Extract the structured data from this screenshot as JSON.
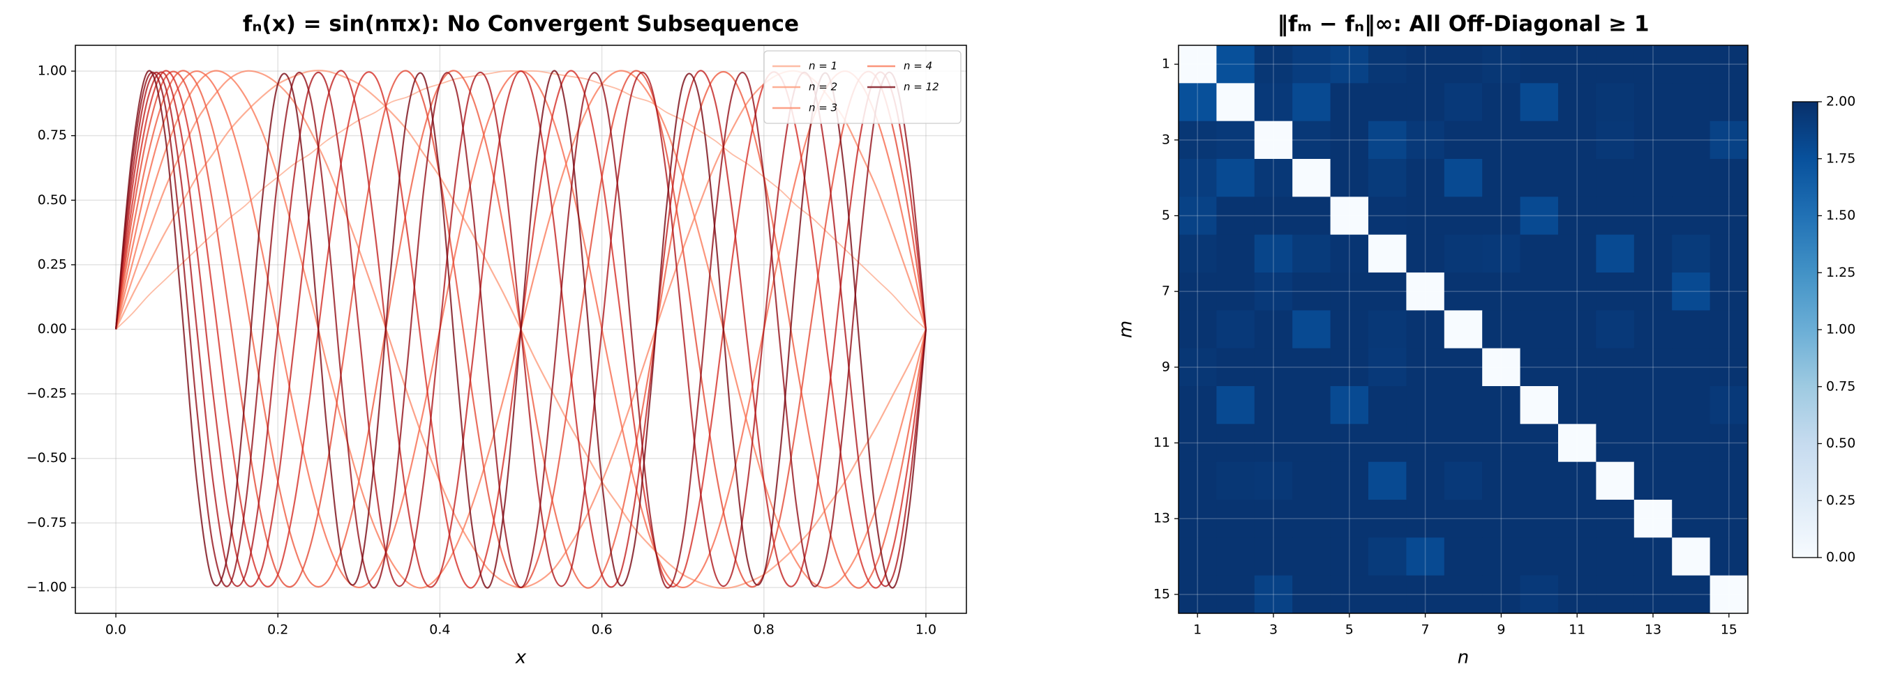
{
  "chart_data": [
    {
      "type": "line",
      "title": "fₙ(x) = sin(nπx): No Convergent Subsequence",
      "xlabel": "x",
      "xlim": [
        -0.05,
        1.05
      ],
      "ylim": [
        -1.1,
        1.1
      ],
      "xticks": [
        {
          "value": 0,
          "label": "0.0"
        },
        {
          "value": 0.2,
          "label": "0.2"
        },
        {
          "value": 0.4,
          "label": "0.4"
        },
        {
          "value": 0.6,
          "label": "0.6"
        },
        {
          "value": 0.8,
          "label": "0.8"
        },
        {
          "value": 1,
          "label": "1.0"
        }
      ],
      "yticks": [
        {
          "value": -1,
          "label": "−1.00"
        },
        {
          "value": -0.75,
          "label": "−0.75"
        },
        {
          "value": -0.5,
          "label": "−0.50"
        },
        {
          "value": -0.25,
          "label": "−0.25"
        },
        {
          "value": 0,
          "label": "0.00"
        },
        {
          "value": 0.25,
          "label": "0.25"
        },
        {
          "value": 0.5,
          "label": "0.50"
        },
        {
          "value": 0.75,
          "label": "0.75"
        },
        {
          "value": 1,
          "label": "1.00"
        }
      ],
      "grid": true,
      "legend": "upper right",
      "x": [
        0,
        0.02,
        0.04,
        0.06,
        0.08,
        0.1,
        0.12,
        0.14,
        0.16,
        0.18,
        0.2,
        0.22,
        0.24,
        0.26,
        0.28,
        0.3,
        0.32,
        0.34,
        0.36,
        0.38,
        0.4,
        0.42,
        0.44,
        0.46,
        0.48,
        0.5,
        0.52,
        0.54,
        0.56,
        0.58,
        0.6,
        0.62,
        0.64,
        0.66,
        0.68,
        0.7,
        0.72,
        0.74,
        0.76,
        0.78,
        0.8,
        0.82,
        0.84,
        0.86,
        0.88,
        0.9,
        0.92,
        0.94,
        0.96,
        0.98,
        1
      ],
      "series": [
        {
          "name": "n = 1",
          "color": "#fcab8f",
          "values": [
            0,
            0.06,
            0.13,
            0.19,
            0.25,
            0.31,
            0.37,
            0.43,
            0.48,
            0.54,
            0.59,
            0.64,
            0.68,
            0.73,
            0.77,
            0.81,
            0.84,
            0.88,
            0.9,
            0.93,
            0.95,
            0.97,
            0.98,
            0.99,
            1,
            1,
            1,
            0.99,
            0.98,
            0.97,
            0.95,
            0.93,
            0.9,
            0.88,
            0.84,
            0.81,
            0.77,
            0.73,
            0.68,
            0.64,
            0.59,
            0.54,
            0.48,
            0.43,
            0.37,
            0.31,
            0.25,
            0.19,
            0.13,
            0.06,
            0
          ]
        },
        {
          "name": "n = 2",
          "color": "#fc9b7c",
          "values": [
            0,
            0.13,
            0.25,
            0.37,
            0.48,
            0.59,
            0.68,
            0.77,
            0.84,
            0.9,
            0.95,
            0.98,
            1,
            1,
            0.98,
            0.95,
            0.9,
            0.84,
            0.77,
            0.68,
            0.59,
            0.48,
            0.37,
            0.25,
            0.13,
            0,
            -0.13,
            -0.25,
            -0.37,
            -0.48,
            -0.59,
            -0.68,
            -0.77,
            -0.84,
            -0.9,
            -0.95,
            -0.98,
            -1,
            -1,
            -0.98,
            -0.95,
            -0.9,
            -0.84,
            -0.77,
            -0.68,
            -0.59,
            -0.48,
            -0.37,
            -0.25,
            -0.13,
            0
          ]
        },
        {
          "name": "n = 3",
          "color": "#fb8a6a",
          "values": [
            0,
            0.19,
            0.37,
            0.54,
            0.68,
            0.81,
            0.9,
            0.97,
            1,
            0.99,
            0.95,
            0.88,
            0.77,
            0.64,
            0.48,
            0.31,
            0.13,
            -0.06,
            -0.25,
            -0.43,
            -0.59,
            -0.73,
            -0.84,
            -0.93,
            -0.98,
            -1,
            -0.98,
            -0.93,
            -0.84,
            -0.73,
            -0.59,
            -0.43,
            -0.25,
            -0.06,
            0.13,
            0.31,
            0.48,
            0.64,
            0.77,
            0.88,
            0.95,
            0.99,
            1,
            0.97,
            0.9,
            0.81,
            0.68,
            0.54,
            0.37,
            0.19,
            0
          ]
        },
        {
          "name": "n = 4",
          "color": "#fa7a5a",
          "values": [
            0,
            0.25,
            0.48,
            0.68,
            0.84,
            0.95,
            1,
            0.98,
            0.9,
            0.77,
            0.59,
            0.37,
            0.13,
            -0.13,
            -0.37,
            -0.59,
            -0.77,
            -0.9,
            -0.98,
            -1,
            -0.95,
            -0.84,
            -0.68,
            -0.48,
            -0.25,
            0,
            0.25,
            0.48,
            0.68,
            0.84,
            0.95,
            1,
            0.98,
            0.9,
            0.77,
            0.59,
            0.37,
            0.13,
            -0.13,
            -0.37,
            -0.59,
            -0.77,
            -0.9,
            -0.98,
            -1,
            -0.95,
            -0.84,
            -0.68,
            -0.48,
            -0.25,
            0
          ]
        },
        {
          "color": "#f6694c",
          "values": [
            0,
            0.31,
            0.59,
            0.81,
            0.95,
            1,
            0.95,
            0.81,
            0.59,
            0.31,
            0,
            -0.31,
            -0.59,
            -0.81,
            -0.95,
            -1,
            -0.95,
            -0.81,
            -0.59,
            -0.31,
            0,
            0.31,
            0.59,
            0.81,
            0.95,
            1,
            0.95,
            0.81,
            0.59,
            0.31,
            0,
            -0.31,
            -0.59,
            -0.81,
            -0.95,
            -1,
            -0.95,
            -0.81,
            -0.59,
            -0.31,
            0,
            0.31,
            0.59,
            0.81,
            0.95,
            1,
            0.95,
            0.81,
            0.59,
            0.31,
            0
          ]
        },
        {
          "color": "#ef5b40",
          "values": [
            0,
            0.37,
            0.68,
            0.9,
            1,
            0.95,
            0.77,
            0.48,
            0.13,
            -0.25,
            -0.59,
            -0.84,
            -0.98,
            -0.98,
            -0.84,
            -0.59,
            -0.25,
            0.13,
            0.48,
            0.77,
            0.95,
            1,
            0.9,
            0.68,
            0.37,
            0,
            -0.37,
            -0.68,
            -0.9,
            -1,
            -0.95,
            -0.77,
            -0.48,
            -0.13,
            0.25,
            0.59,
            0.84,
            0.98,
            0.98,
            0.84,
            0.59,
            0.25,
            -0.13,
            -0.48,
            -0.77,
            -0.95,
            -1,
            -0.9,
            -0.68,
            -0.37,
            0
          ]
        },
        {
          "color": "#e34834",
          "values": [
            0,
            0.43,
            0.77,
            0.97,
            0.98,
            0.81,
            0.48,
            0.06,
            -0.37,
            -0.73,
            -0.95,
            -0.99,
            -0.84,
            -0.54,
            -0.13,
            0.31,
            0.68,
            0.93,
            1,
            0.88,
            0.59,
            0.19,
            -0.25,
            -0.64,
            -0.9,
            -1,
            -0.9,
            -0.64,
            -0.25,
            0.19,
            0.59,
            0.88,
            1,
            0.93,
            0.68,
            0.31,
            -0.13,
            -0.54,
            -0.84,
            -0.99,
            -0.95,
            -0.73,
            -0.37,
            0.06,
            0.48,
            0.81,
            0.98,
            0.97,
            0.77,
            0.43,
            0
          ]
        },
        {
          "color": "#d52d25",
          "values": [
            0,
            0.48,
            0.84,
            1,
            0.9,
            0.59,
            0.13,
            -0.37,
            -0.77,
            -0.98,
            -0.95,
            -0.68,
            -0.25,
            0.25,
            0.68,
            0.95,
            0.98,
            0.77,
            0.37,
            -0.13,
            -0.59,
            -0.9,
            -1,
            -0.84,
            -0.48,
            0,
            0.48,
            0.84,
            1,
            0.9,
            0.59,
            0.13,
            -0.37,
            -0.77,
            -0.98,
            -0.95,
            -0.68,
            -0.25,
            0.25,
            0.68,
            0.95,
            0.98,
            0.77,
            0.37,
            -0.13,
            -0.59,
            -0.9,
            -1,
            -0.84,
            -0.48,
            0
          ]
        },
        {
          "color": "#c2201f",
          "values": [
            0,
            0.54,
            0.9,
            0.99,
            0.77,
            0.31,
            -0.25,
            -0.73,
            -0.98,
            -0.93,
            -0.59,
            -0.06,
            0.48,
            0.88,
            1,
            0.81,
            0.37,
            -0.19,
            -0.68,
            -0.97,
            -0.95,
            -0.64,
            -0.13,
            0.43,
            0.84,
            1,
            0.84,
            0.43,
            -0.13,
            -0.64,
            -0.95,
            -0.97,
            -0.68,
            -0.19,
            0.37,
            0.81,
            1,
            0.88,
            0.48,
            -0.06,
            -0.59,
            -0.93,
            -0.98,
            -0.73,
            -0.25,
            0.31,
            0.77,
            0.99,
            0.9,
            0.54,
            0
          ]
        },
        {
          "color": "#ad161c",
          "values": [
            0,
            0.59,
            0.95,
            0.95,
            0.59,
            0,
            -0.59,
            -0.95,
            -0.95,
            -0.59,
            0,
            0.59,
            0.95,
            0.95,
            0.59,
            0,
            -0.59,
            -0.95,
            -0.95,
            -0.59,
            0,
            0.59,
            0.95,
            0.95,
            0.59,
            0,
            -0.59,
            -0.95,
            -0.95,
            -0.59,
            0,
            0.59,
            0.95,
            0.95,
            0.59,
            0,
            -0.59,
            -0.95,
            -0.95,
            -0.59,
            0,
            0.59,
            0.95,
            0.95,
            0.59,
            0,
            -0.59,
            -0.95,
            -0.95,
            -0.59,
            0
          ]
        },
        {
          "color": "#920f18",
          "values": [
            0,
            0.64,
            0.98,
            0.88,
            0.37,
            -0.31,
            -0.84,
            -0.99,
            -0.68,
            -0.06,
            0.59,
            0.97,
            0.9,
            0.43,
            -0.25,
            -0.81,
            -1,
            -0.73,
            -0.13,
            0.54,
            0.95,
            0.93,
            0.48,
            -0.19,
            -0.77,
            -1,
            -0.77,
            -0.19,
            0.48,
            0.93,
            0.95,
            0.54,
            -0.13,
            -0.73,
            -1,
            -0.81,
            -0.25,
            0.43,
            0.9,
            0.97,
            0.59,
            -0.06,
            -0.68,
            -0.99,
            -0.84,
            -0.31,
            0.37,
            0.88,
            0.98,
            0.64,
            0
          ]
        },
        {
          "name": "n = 12",
          "color": "#780712",
          "values": [
            0,
            0.68,
            1,
            0.77,
            0.13,
            -0.59,
            -0.98,
            -0.84,
            -0.25,
            0.48,
            0.95,
            0.9,
            0.37,
            -0.37,
            -0.9,
            -0.95,
            -0.48,
            0.25,
            0.84,
            0.98,
            0.59,
            -0.13,
            -0.77,
            -1,
            -0.68,
            0,
            0.68,
            1,
            0.77,
            0.13,
            -0.59,
            -0.98,
            -0.84,
            -0.25,
            0.48,
            0.95,
            0.9,
            0.37,
            -0.37,
            -0.9,
            -0.95,
            -0.48,
            0.25,
            0.84,
            0.98,
            0.59,
            -0.13,
            -0.77,
            -1,
            -0.68,
            0
          ]
        }
      ]
    },
    {
      "type": "heatmap",
      "title": "‖fₘ − fₙ‖∞: All Off-Diagonal ≥ 1",
      "xlabel": "n",
      "ylabel": "m",
      "x": [
        1,
        2,
        3,
        4,
        5,
        6,
        7,
        8,
        9,
        10,
        11,
        12,
        13,
        14,
        15
      ],
      "y": [
        1,
        2,
        3,
        4,
        5,
        6,
        7,
        8,
        9,
        10,
        11,
        12,
        13,
        14,
        15
      ],
      "xlim": [
        0.5,
        15.5
      ],
      "ylim": [
        15.5,
        0.5
      ],
      "xticks": [
        1,
        3,
        5,
        7,
        9,
        11,
        13,
        15
      ],
      "yticks": [
        1,
        3,
        5,
        7,
        9,
        11,
        13,
        15
      ],
      "grid": true,
      "colormap": [
        "#f7fbff",
        "#deebf7",
        "#c6dbef",
        "#9ecae1",
        "#6baed6",
        "#4292c6",
        "#2171b5",
        "#08519c",
        "#08306b"
      ],
      "clim": [
        0,
        2
      ],
      "cticks": [
        {
          "value": 0,
          "label": "0.00"
        },
        {
          "value": 0.25,
          "label": "0.25"
        },
        {
          "value": 0.5,
          "label": "0.50"
        },
        {
          "value": 0.75,
          "label": "0.75"
        },
        {
          "value": 1,
          "label": "1.00"
        },
        {
          "value": 1.25,
          "label": "1.25"
        },
        {
          "value": 1.5,
          "label": "1.50"
        },
        {
          "value": 1.75,
          "label": "1.75"
        },
        {
          "value": 2,
          "label": "2.00"
        }
      ],
      "values": [
        [
          0,
          1.76,
          1.95,
          1.9,
          1.86,
          1.95,
          1.97,
          1.97,
          1.95,
          1.97,
          1.97,
          1.97,
          1.97,
          1.97,
          1.97
        ],
        [
          1.76,
          0,
          1.93,
          1.8,
          1.97,
          1.97,
          1.97,
          1.93,
          1.97,
          1.8,
          1.97,
          1.95,
          1.97,
          1.97,
          1.97
        ],
        [
          1.95,
          1.93,
          0,
          1.94,
          1.97,
          1.84,
          1.93,
          1.97,
          1.97,
          1.97,
          1.97,
          1.94,
          1.97,
          1.97,
          1.86
        ],
        [
          1.9,
          1.8,
          1.94,
          0,
          1.97,
          1.92,
          1.97,
          1.8,
          1.97,
          1.97,
          1.97,
          1.97,
          1.97,
          1.97,
          1.97
        ],
        [
          1.86,
          1.97,
          1.97,
          1.97,
          0,
          1.96,
          1.97,
          1.97,
          1.97,
          1.8,
          1.97,
          1.97,
          1.97,
          1.97,
          1.97
        ],
        [
          1.95,
          1.97,
          1.84,
          1.92,
          1.96,
          0,
          1.97,
          1.94,
          1.93,
          1.97,
          1.97,
          1.8,
          1.97,
          1.92,
          1.97
        ],
        [
          1.97,
          1.97,
          1.93,
          1.97,
          1.97,
          1.97,
          0,
          1.97,
          1.97,
          1.97,
          1.97,
          1.97,
          1.97,
          1.8,
          1.97
        ],
        [
          1.97,
          1.93,
          1.97,
          1.8,
          1.97,
          1.94,
          1.97,
          0,
          1.97,
          1.97,
          1.97,
          1.93,
          1.97,
          1.97,
          1.97
        ],
        [
          1.95,
          1.97,
          1.97,
          1.97,
          1.97,
          1.93,
          1.97,
          1.97,
          0,
          1.97,
          1.97,
          1.97,
          1.97,
          1.97,
          1.97
        ],
        [
          1.97,
          1.8,
          1.97,
          1.97,
          1.8,
          1.97,
          1.97,
          1.97,
          1.97,
          0,
          1.97,
          1.97,
          1.97,
          1.97,
          1.93
        ],
        [
          1.97,
          1.97,
          1.97,
          1.97,
          1.97,
          1.97,
          1.97,
          1.97,
          1.97,
          1.97,
          0,
          1.97,
          1.97,
          1.97,
          1.97
        ],
        [
          1.97,
          1.95,
          1.94,
          1.97,
          1.97,
          1.8,
          1.97,
          1.93,
          1.97,
          1.97,
          1.97,
          0,
          1.97,
          1.97,
          1.97
        ],
        [
          1.97,
          1.97,
          1.97,
          1.97,
          1.97,
          1.97,
          1.97,
          1.97,
          1.97,
          1.97,
          1.97,
          1.97,
          0,
          1.97,
          1.97
        ],
        [
          1.97,
          1.97,
          1.97,
          1.97,
          1.97,
          1.92,
          1.8,
          1.97,
          1.97,
          1.97,
          1.97,
          1.97,
          1.97,
          0,
          1.97
        ],
        [
          1.97,
          1.97,
          1.86,
          1.97,
          1.97,
          1.97,
          1.97,
          1.97,
          1.97,
          1.93,
          1.97,
          1.97,
          1.97,
          1.97,
          0
        ]
      ]
    }
  ]
}
